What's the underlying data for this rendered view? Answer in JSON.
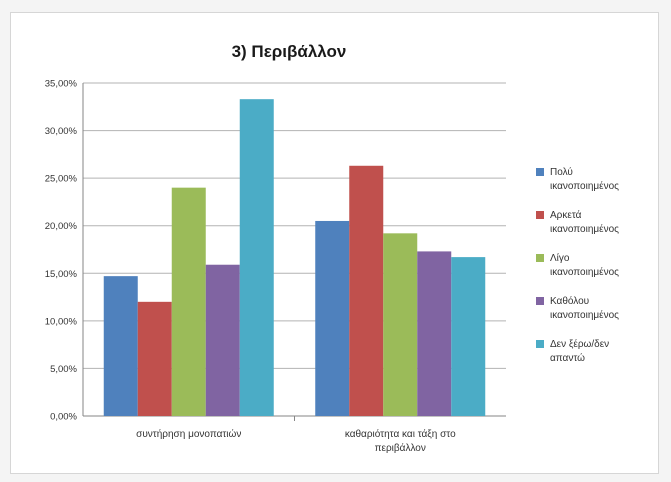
{
  "chart_data": {
    "type": "bar",
    "title": "3) Περιβάλλον",
    "xlabel": "",
    "ylabel": "",
    "ylim": [
      0,
      35
    ],
    "y_tick_labels": [
      "0,00%",
      "5,00%",
      "10,00%",
      "15,00%",
      "20,00%",
      "25,00%",
      "30,00%",
      "35,00%"
    ],
    "grid": true,
    "legend_position": "right",
    "categories": [
      [
        "συντήρηση μονοπατιών"
      ],
      [
        "καθαριότητα και τάξη στο",
        "περιβάλλον"
      ]
    ],
    "series": [
      {
        "name": [
          "Πολύ",
          "ικανοποιημένος"
        ],
        "color": "#4f81bd",
        "values": [
          14.7,
          20.5
        ]
      },
      {
        "name": [
          "Αρκετά",
          "ικανοποιημένος"
        ],
        "color": "#c0504d",
        "values": [
          12.0,
          26.3
        ]
      },
      {
        "name": [
          "Λίγο",
          "ικανοποιημένος"
        ],
        "color": "#9bbb59",
        "values": [
          24.0,
          19.2
        ]
      },
      {
        "name": [
          "Καθόλου",
          "ικανοποιημένος"
        ],
        "color": "#8064a2",
        "values": [
          15.9,
          17.3
        ]
      },
      {
        "name": [
          "Δεν ξέρω/δεν",
          "απαντώ"
        ],
        "color": "#4bacc6",
        "values": [
          33.3,
          16.7
        ]
      }
    ]
  }
}
